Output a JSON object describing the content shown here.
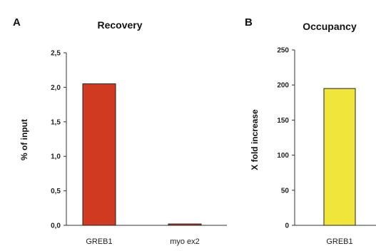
{
  "panels": [
    {
      "letter": "A"
    },
    {
      "letter": "B"
    }
  ],
  "chart_data": [
    {
      "type": "bar",
      "title": "Recovery",
      "xlabel": "",
      "ylabel": "% of input",
      "categories": [
        "GREB1",
        "myo ex2"
      ],
      "values": [
        2.05,
        0.02
      ],
      "ylim": [
        0,
        2.5
      ],
      "yticks": [
        0,
        0.5,
        1.0,
        1.5,
        2.0,
        2.5
      ],
      "ytick_labels": [
        "0,0",
        "0,5",
        "1,0",
        "1,5",
        "2,0",
        "2,5"
      ],
      "bar_color": "#d03a20",
      "grid": false
    },
    {
      "type": "bar",
      "title": "Occupancy",
      "xlabel": "",
      "ylabel": "X fold increase",
      "categories": [
        "GREB1"
      ],
      "values": [
        195
      ],
      "ylim": [
        0,
        250
      ],
      "yticks": [
        0,
        50,
        100,
        150,
        200,
        250
      ],
      "ytick_labels": [
        "0",
        "50",
        "100",
        "150",
        "200",
        "250"
      ],
      "bar_color": "#f0e53a",
      "grid": false
    }
  ]
}
